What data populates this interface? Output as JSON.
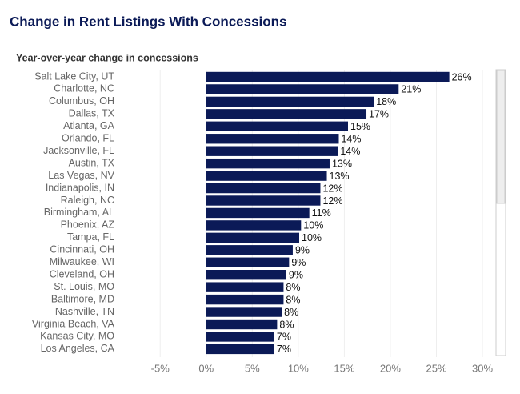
{
  "chart_data": {
    "type": "bar",
    "orientation": "horizontal",
    "title": "Change in Rent Listings With Concessions",
    "subtitle": "Year-over-year change in concessions",
    "color": "#0b1a57",
    "categories": [
      "Salt Lake City, UT",
      "Charlotte, NC",
      "Columbus, OH",
      "Dallas, TX",
      "Atlanta, GA",
      "Orlando, FL",
      "Jacksonville, FL",
      "Austin, TX",
      "Las Vegas, NV",
      "Indianapolis, IN",
      "Raleigh, NC",
      "Birmingham, AL",
      "Phoenix, AZ",
      "Tampa, FL",
      "Cincinnati, OH",
      "Milwaukee, WI",
      "Cleveland, OH",
      "St. Louis, MO",
      "Baltimore, MD",
      "Nashville, TN",
      "Virginia Beach, VA",
      "Kansas City, MO",
      "Los Angeles, CA"
    ],
    "values": [
      26.4,
      20.9,
      18.2,
      17.4,
      15.4,
      14.4,
      14.3,
      13.4,
      13.1,
      12.4,
      12.4,
      11.2,
      10.3,
      10.1,
      9.4,
      9.0,
      8.7,
      8.4,
      8.4,
      8.2,
      7.7,
      7.4,
      7.4
    ],
    "value_labels": [
      "26%",
      "21%",
      "18%",
      "17%",
      "15%",
      "14%",
      "14%",
      "13%",
      "13%",
      "12%",
      "12%",
      "11%",
      "10%",
      "10%",
      "9%",
      "9%",
      "9%",
      "8%",
      "8%",
      "8%",
      "8%",
      "7%",
      "7%"
    ],
    "xlim": [
      -5.8,
      31.3
    ],
    "xticks": [
      {
        "value": -5,
        "label": "-5%"
      },
      {
        "value": 0,
        "label": "0%"
      },
      {
        "value": 5,
        "label": "5%"
      },
      {
        "value": 10,
        "label": "10%"
      },
      {
        "value": 15,
        "label": "15%"
      },
      {
        "value": 20,
        "label": "20%"
      },
      {
        "value": 25,
        "label": "25%"
      },
      {
        "value": 30,
        "label": "30%"
      }
    ],
    "grid": true
  }
}
